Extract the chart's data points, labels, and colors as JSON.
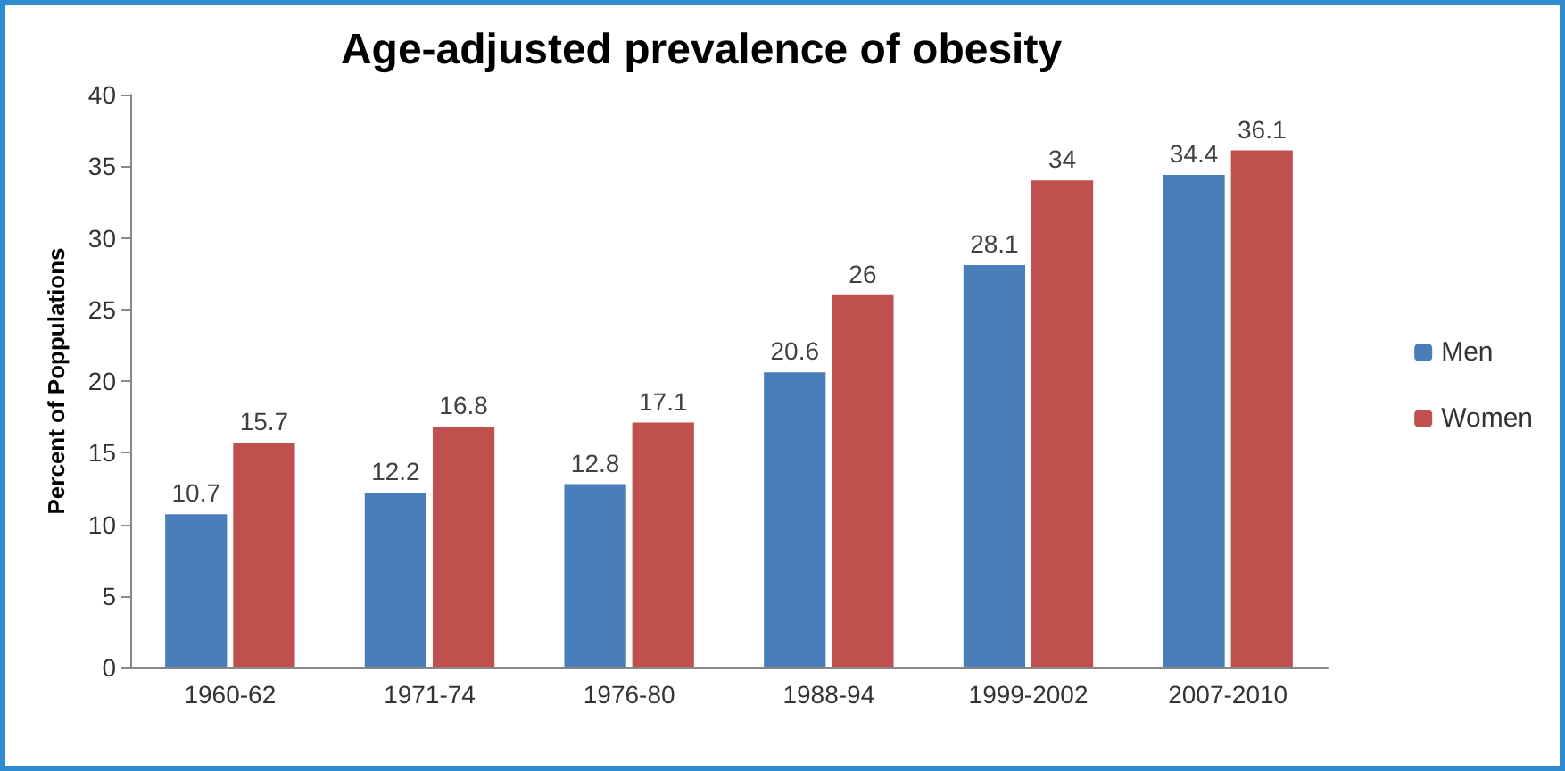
{
  "chart_data": {
    "type": "bar",
    "title": "Age-adjusted prevalence of obesity",
    "ylabel": "Percent of Poppulations",
    "categories": [
      "1960-62",
      "1971-74",
      "1976-80",
      "1988-94",
      "1999-2002",
      "2007-2010"
    ],
    "series": [
      {
        "name": "Men",
        "color": "#4a7ebb",
        "values": [
          10.7,
          12.2,
          12.8,
          20.6,
          28.1,
          34.4
        ]
      },
      {
        "name": "Women",
        "color": "#c0504d",
        "values": [
          15.7,
          16.8,
          17.1,
          26,
          34,
          36.1
        ]
      }
    ],
    "ylim": [
      0,
      40
    ],
    "yticks": [
      0,
      5,
      10,
      15,
      20,
      25,
      30,
      35,
      40
    ],
    "data_labels": true,
    "legend": "right",
    "grid": false
  }
}
